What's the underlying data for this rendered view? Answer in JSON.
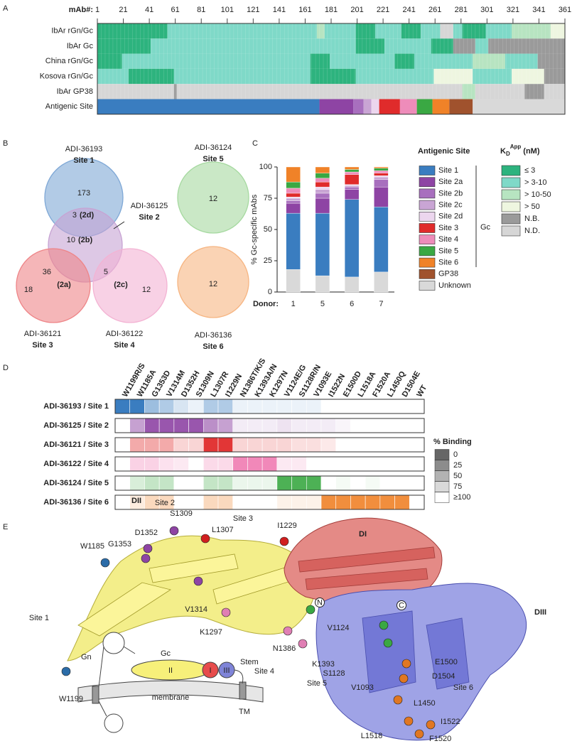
{
  "panel_labels": [
    "A",
    "B",
    "C",
    "D",
    "E"
  ],
  "heatmap": {
    "axis_label": "mAb#:",
    "xlim": [
      1,
      361
    ],
    "xticks": [
      1,
      21,
      41,
      61,
      81,
      101,
      121,
      141,
      161,
      181,
      201,
      221,
      241,
      261,
      281,
      301,
      321,
      341,
      361
    ],
    "rows": [
      {
        "label": "IbAr rGn/Gc",
        "segments": [
          {
            "from": 1,
            "to": 55,
            "class": "≤ 3"
          },
          {
            "from": 55,
            "to": 170,
            "class": "> 3-10"
          },
          {
            "from": 170,
            "to": 176,
            "class": "> 10-50"
          },
          {
            "from": 176,
            "to": 200,
            "class": "> 3-10"
          },
          {
            "from": 200,
            "to": 215,
            "class": "≤ 3"
          },
          {
            "from": 215,
            "to": 235,
            "class": "> 3-10"
          },
          {
            "from": 235,
            "to": 250,
            "class": "≤ 3"
          },
          {
            "from": 250,
            "to": 265,
            "class": "> 3-10"
          },
          {
            "from": 265,
            "to": 275,
            "class": "N.D."
          },
          {
            "from": 275,
            "to": 282,
            "class": "> 3-10"
          },
          {
            "from": 282,
            "to": 300,
            "class": "≤ 3"
          },
          {
            "from": 300,
            "to": 320,
            "class": "> 3-10"
          },
          {
            "from": 320,
            "to": 350,
            "class": "> 10-50"
          },
          {
            "from": 350,
            "to": 361,
            "class": "> 50"
          }
        ]
      },
      {
        "label": "IbAr Gc",
        "segments": [
          {
            "from": 1,
            "to": 42,
            "class": "≤ 3"
          },
          {
            "from": 42,
            "to": 172,
            "class": "> 3-10"
          },
          {
            "from": 172,
            "to": 200,
            "class": "> 3-10"
          },
          {
            "from": 200,
            "to": 222,
            "class": "≤ 3"
          },
          {
            "from": 222,
            "to": 258,
            "class": "> 3-10"
          },
          {
            "from": 258,
            "to": 275,
            "class": "≤ 3"
          },
          {
            "from": 275,
            "to": 292,
            "class": "N.B."
          },
          {
            "from": 292,
            "to": 302,
            "class": "> 3-10"
          },
          {
            "from": 302,
            "to": 361,
            "class": "N.B."
          }
        ]
      },
      {
        "label": "China rGn/Gc",
        "segments": [
          {
            "from": 1,
            "to": 20,
            "class": "≤ 3"
          },
          {
            "from": 20,
            "to": 165,
            "class": "> 3-10"
          },
          {
            "from": 165,
            "to": 180,
            "class": "≤ 3"
          },
          {
            "from": 180,
            "to": 230,
            "class": "> 3-10"
          },
          {
            "from": 230,
            "to": 245,
            "class": "≤ 3"
          },
          {
            "from": 245,
            "to": 290,
            "class": "> 3-10"
          },
          {
            "from": 290,
            "to": 315,
            "class": "> 10-50"
          },
          {
            "from": 315,
            "to": 340,
            "class": "> 3-10"
          },
          {
            "from": 340,
            "to": 361,
            "class": "N.B."
          }
        ]
      },
      {
        "label": "Kosova rGn/Gc",
        "segments": [
          {
            "from": 1,
            "to": 25,
            "class": "> 3-10"
          },
          {
            "from": 25,
            "to": 60,
            "class": "≤ 3"
          },
          {
            "from": 60,
            "to": 165,
            "class": "> 3-10"
          },
          {
            "from": 165,
            "to": 200,
            "class": "≤ 3"
          },
          {
            "from": 200,
            "to": 260,
            "class": "> 3-10"
          },
          {
            "from": 260,
            "to": 290,
            "class": "> 50"
          },
          {
            "from": 290,
            "to": 320,
            "class": "> 3-10"
          },
          {
            "from": 320,
            "to": 345,
            "class": "> 50"
          },
          {
            "from": 345,
            "to": 361,
            "class": "N.B."
          }
        ]
      },
      {
        "label": "IbAr GP38",
        "segments": [
          {
            "from": 1,
            "to": 60,
            "class": "N.D."
          },
          {
            "from": 60,
            "to": 62,
            "class": "N.B."
          },
          {
            "from": 62,
            "to": 282,
            "class": "N.D."
          },
          {
            "from": 282,
            "to": 292,
            "class": "> 10-50"
          },
          {
            "from": 292,
            "to": 330,
            "class": "N.D."
          },
          {
            "from": 330,
            "to": 345,
            "class": "N.B."
          },
          {
            "from": 345,
            "to": 361,
            "class": "N.D."
          }
        ]
      },
      {
        "label": "Antigenic Site",
        "segments": [
          {
            "from": 1,
            "to": 172,
            "class": "Site 1"
          },
          {
            "from": 172,
            "to": 198,
            "class": "Site 2a"
          },
          {
            "from": 198,
            "to": 206,
            "class": "Site 2b"
          },
          {
            "from": 206,
            "to": 212,
            "class": "Site 2c"
          },
          {
            "from": 212,
            "to": 218,
            "class": "Site 2d"
          },
          {
            "from": 218,
            "to": 234,
            "class": "Site 3"
          },
          {
            "from": 234,
            "to": 247,
            "class": "Site 4"
          },
          {
            "from": 247,
            "to": 259,
            "class": "Site 5"
          },
          {
            "from": 259,
            "to": 272,
            "class": "Site 6"
          },
          {
            "from": 272,
            "to": 290,
            "class": "GP38"
          },
          {
            "from": 290,
            "to": 361,
            "class": "Unknown"
          }
        ]
      }
    ]
  },
  "venn": {
    "sets": [
      {
        "name": "ADI-36193",
        "site": "Site 1",
        "color": "#7fa8d6"
      },
      {
        "name": "ADI-36125",
        "site": "Site 2",
        "color": "#c7a3d3"
      },
      {
        "name": "ADI-36121",
        "site": "Site 3",
        "color": "#ee8588"
      },
      {
        "name": "ADI-36122",
        "site": "Site 4",
        "color": "#f3b3d3"
      },
      {
        "name": "ADI-36124",
        "site": "Site 5",
        "color": "#a6d9a0"
      },
      {
        "name": "ADI-36136",
        "site": "Site 6",
        "color": "#f6b582"
      }
    ],
    "regions": [
      {
        "value": 173
      },
      {
        "value": 3,
        "label": "(2d)"
      },
      {
        "value": 10,
        "label": "(2b)"
      },
      {
        "value": 36,
        "label": "(2a)"
      },
      {
        "value": 5,
        "label": "(2c)"
      },
      {
        "value": 18
      },
      {
        "value": 12
      },
      {
        "value": 12
      },
      {
        "value": 12
      }
    ]
  },
  "chart_data": {
    "type": "bar",
    "stacked": true,
    "ylabel": "% Gc-specific mAbs",
    "xlabel": "Donor:",
    "categories": [
      "1",
      "5",
      "6",
      "7"
    ],
    "ylim": [
      0,
      100
    ],
    "yticks": [
      0,
      25,
      50,
      75,
      100
    ],
    "legend_title": "Antigenic Site",
    "legend_group": "Gc",
    "series": [
      {
        "name": "Site 1",
        "color": "#3a7dc0",
        "values": [
          45,
          50,
          62,
          52
        ]
      },
      {
        "name": "Site 2a",
        "color": "#8e44a4",
        "values": [
          8,
          12,
          8,
          16
        ]
      },
      {
        "name": "Site 2b",
        "color": "#a86fbe",
        "values": [
          2,
          4,
          2,
          6
        ]
      },
      {
        "name": "Site 2c",
        "color": "#c9a5d4",
        "values": [
          2,
          3,
          1,
          2
        ]
      },
      {
        "name": "Site 2d",
        "color": "#ecd6ee",
        "values": [
          1,
          2,
          1,
          1
        ]
      },
      {
        "name": "Site 3",
        "color": "#e02b2b",
        "values": [
          3,
          4,
          8,
          2
        ]
      },
      {
        "name": "Site 4",
        "color": "#ee8cba",
        "values": [
          4,
          3,
          2,
          2
        ]
      },
      {
        "name": "Site 5",
        "color": "#3aa843",
        "values": [
          5,
          4,
          2,
          2
        ]
      },
      {
        "name": "Site 6",
        "color": "#f08228",
        "values": [
          12,
          5,
          2,
          1
        ]
      },
      {
        "name": "GP38",
        "color": "#a0522d",
        "values": [
          0,
          0,
          0,
          0
        ]
      },
      {
        "name": "Unknown",
        "color": "#d9d9d9",
        "values": [
          18,
          13,
          12,
          16
        ]
      }
    ]
  },
  "kd_legend": {
    "title": {
      "main": "K",
      "sub": "D",
      "sup": "App",
      "unit": "(nM)"
    },
    "items": [
      {
        "name": "≤ 3",
        "color": "#2db37e"
      },
      {
        "name": "> 3-10",
        "color": "#7fd9c8"
      },
      {
        "name": "> 10-50",
        "color": "#b7e4c1"
      },
      {
        "name": "> 50",
        "color": "#eef6e0"
      },
      {
        "name": "N.B.",
        "color": "#9a9a9a"
      },
      {
        "name": "N.D.",
        "color": "#d6d6d6"
      }
    ]
  },
  "binding": {
    "columns": [
      "W1199R/S",
      "W1185A",
      "G1353D",
      "V1314M",
      "D1352H",
      "S1309N",
      "L1307R",
      "I1229N",
      "N1386T/K/S",
      "K1393A/N",
      "K1297N",
      "V1124E/G",
      "S1128R/N",
      "V1093E",
      "I1522N",
      "E1500D",
      "L1518A",
      "F1520A",
      "L1450Q",
      "D1504E",
      "WT"
    ],
    "rows": [
      {
        "label": "ADI-36193 / Site 1",
        "color": "#3a7dc0",
        "values": [
          0,
          0,
          50,
          60,
          80,
          90,
          60,
          60,
          90,
          90,
          90,
          90,
          90,
          90,
          100,
          100,
          100,
          100,
          100,
          100,
          100
        ]
      },
      {
        "label": "ADI-36125 / Site 2",
        "color": "#8e44a4",
        "values": [
          100,
          50,
          10,
          10,
          10,
          10,
          40,
          50,
          90,
          90,
          90,
          85,
          90,
          90,
          90,
          95,
          100,
          100,
          100,
          100,
          100
        ]
      },
      {
        "label": "ADI-36121 / Site 3",
        "color": "#e02b2b",
        "values": [
          100,
          60,
          60,
          60,
          80,
          80,
          5,
          5,
          80,
          80,
          80,
          80,
          85,
          85,
          90,
          100,
          100,
          100,
          100,
          100,
          100
        ]
      },
      {
        "label": "ADI-36122 / Site 4",
        "color": "#ee6aa8",
        "values": [
          100,
          70,
          70,
          80,
          85,
          100,
          75,
          75,
          20,
          20,
          20,
          85,
          85,
          100,
          100,
          100,
          100,
          100,
          100,
          100,
          100
        ]
      },
      {
        "label": "ADI-36124 / Site 5",
        "color": "#3aa843",
        "values": [
          100,
          80,
          70,
          70,
          100,
          100,
          70,
          70,
          90,
          90,
          90,
          10,
          10,
          10,
          100,
          95,
          100,
          95,
          100,
          100,
          100
        ]
      },
      {
        "label": "ADI-36136 / Site 6",
        "color": "#f08228",
        "values": [
          100,
          85,
          70,
          70,
          100,
          100,
          70,
          70,
          100,
          100,
          100,
          90,
          90,
          90,
          10,
          10,
          10,
          10,
          10,
          10,
          100
        ]
      }
    ],
    "legend_title": "% Binding",
    "legend_ticks": [
      0,
      25,
      50,
      75,
      {
        "value": 100,
        "label": "≥100"
      }
    ]
  },
  "structure": {
    "domains": [
      {
        "label": "DII",
        "color": "#c9c23a"
      },
      {
        "label": "DI",
        "color": "#c0504d"
      },
      {
        "label": "DIII",
        "color": "#5a5fbf"
      }
    ],
    "site_labels": [
      {
        "label": "Site 1",
        "color": "#3a7dc0"
      },
      {
        "label": "Site 2",
        "color": "#8e44a4"
      },
      {
        "label": "Site 3",
        "color": "#e02b2b"
      },
      {
        "label": "Site 4",
        "color": "#ee6aa8"
      },
      {
        "label": "Site 5",
        "color": "#3aa843"
      },
      {
        "label": "Site 6",
        "color": "#f08228"
      }
    ],
    "residues": [
      {
        "label": "W1185",
        "color": "#2b6ca8"
      },
      {
        "label": "W1199",
        "color": "#2b6ca8"
      },
      {
        "label": "G1353",
        "color": "#8e44a4"
      },
      {
        "label": "D1352",
        "color": "#8e44a4"
      },
      {
        "label": "S1309",
        "color": "#8e44a4"
      },
      {
        "label": "L1307",
        "color": "#d01f1f"
      },
      {
        "label": "I1229",
        "color": "#d01f1f"
      },
      {
        "label": "V1314",
        "color": "#8e44a4"
      },
      {
        "label": "K1297",
        "color": "#e07fb4"
      },
      {
        "label": "N1386",
        "color": "#e07fb4"
      },
      {
        "label": "K1393",
        "color": "#e07fb4"
      },
      {
        "label": "V1124",
        "color": "#3aa843"
      },
      {
        "label": "S1128",
        "color": "#3aa843"
      },
      {
        "label": "V1093",
        "color": "#3aa843"
      },
      {
        "label": "E1500",
        "color": "#e07722"
      },
      {
        "label": "D1504",
        "color": "#e07722"
      },
      {
        "label": "L1450",
        "color": "#e07722"
      },
      {
        "label": "I1522",
        "color": "#e07722"
      },
      {
        "label": "F1520",
        "color": "#e07722"
      },
      {
        "label": "L1518",
        "color": "#e07722"
      }
    ],
    "termini": [
      "N",
      "C"
    ],
    "schematic": {
      "gn": "Gn",
      "gc": "Gc",
      "dii": "II",
      "di": "I",
      "diii": "III",
      "stem": "Stem",
      "membrane": "membrane",
      "tm": "TM"
    }
  }
}
